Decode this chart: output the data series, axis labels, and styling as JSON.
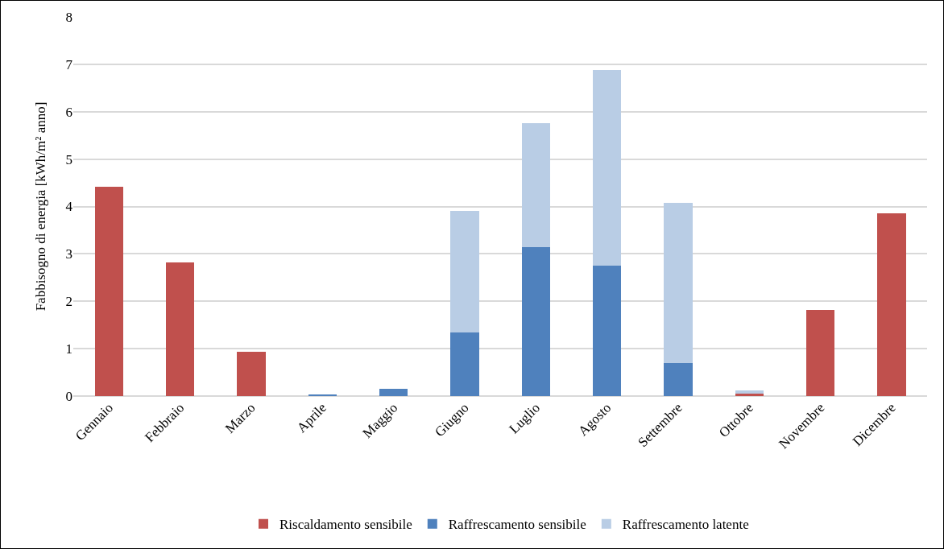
{
  "chart_data": {
    "type": "bar",
    "stacked": true,
    "ylabel": "Fabbisogno di energia [kWh/m² anno]",
    "categories": [
      "Gennaio",
      "Febbraio",
      "Marzo",
      "Aprile",
      "Maggio",
      "Giugno",
      "Luglio",
      "Agosto",
      "Settembre",
      "Ottobre",
      "Novembre",
      "Dicembre"
    ],
    "series": [
      {
        "name": "Riscaldamento sensibile",
        "color": "#c0504d",
        "values": [
          4.42,
          2.82,
          0.94,
          null,
          null,
          null,
          null,
          null,
          null,
          0.05,
          1.82,
          3.85
        ]
      },
      {
        "name": "Raffrescamento sensibile",
        "color": "#4f81bd",
        "values": [
          null,
          null,
          null,
          0.03,
          0.15,
          1.35,
          3.15,
          2.75,
          0.7,
          null,
          null,
          null
        ]
      },
      {
        "name": "Raffrescamento latente",
        "color": "#b9cde5",
        "values": [
          null,
          null,
          null,
          null,
          null,
          2.55,
          2.6,
          4.13,
          3.38,
          0.07,
          null,
          null
        ]
      }
    ],
    "ylim": [
      0,
      8
    ],
    "yticks": [
      0,
      1,
      2,
      3,
      4,
      5,
      6,
      7,
      8
    ],
    "grid": "y",
    "legend": "bottom"
  }
}
